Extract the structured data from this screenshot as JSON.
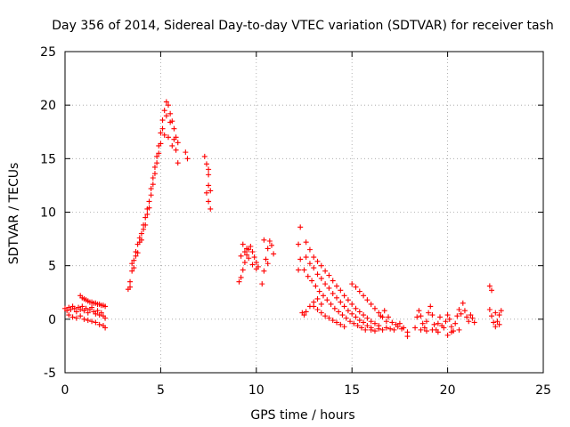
{
  "chart_data": {
    "type": "scatter",
    "title": "Day 356 of 2014, Sidereal Day-to-day VTEC variation (SDTVAR) for receiver tash",
    "xlabel": "GPS time / hours",
    "ylabel": "SDTVAR / TECUs",
    "xlim": [
      0,
      25
    ],
    "ylim": [
      -5,
      25
    ],
    "xticks": [
      0,
      5,
      10,
      15,
      20,
      25
    ],
    "yticks": [
      -5,
      0,
      5,
      10,
      15,
      20,
      25
    ],
    "grid": true,
    "marker": "+",
    "color": "#ff0000",
    "series": [
      {
        "name": "SDTVAR",
        "points": [
          [
            0.0,
            1.0
          ],
          [
            0.1,
            0.8
          ],
          [
            0.2,
            1.1
          ],
          [
            0.3,
            0.9
          ],
          [
            0.4,
            1.2
          ],
          [
            0.5,
            1.0
          ],
          [
            0.6,
            0.7
          ],
          [
            0.7,
            1.1
          ],
          [
            0.8,
            0.9
          ],
          [
            0.9,
            1.2
          ],
          [
            1.0,
            0.8
          ],
          [
            1.1,
            1.0
          ],
          [
            1.2,
            0.6
          ],
          [
            1.3,
            0.9
          ],
          [
            1.4,
            1.1
          ],
          [
            1.5,
            0.7
          ],
          [
            1.6,
            0.5
          ],
          [
            1.7,
            0.8
          ],
          [
            1.8,
            0.4
          ],
          [
            1.9,
            0.6
          ],
          [
            2.0,
            0.3
          ],
          [
            2.1,
            0.1
          ],
          [
            0.2,
            0.4
          ],
          [
            0.4,
            0.2
          ],
          [
            0.6,
            0.1
          ],
          [
            0.8,
            0.3
          ],
          [
            1.0,
            0.0
          ],
          [
            1.2,
            -0.1
          ],
          [
            1.4,
            -0.2
          ],
          [
            1.6,
            -0.3
          ],
          [
            1.8,
            -0.5
          ],
          [
            2.0,
            -0.6
          ],
          [
            2.1,
            -0.8
          ],
          [
            0.8,
            2.2
          ],
          [
            0.9,
            2.0
          ],
          [
            1.0,
            1.9
          ],
          [
            1.1,
            1.8
          ],
          [
            1.2,
            1.7
          ],
          [
            1.3,
            1.6
          ],
          [
            1.4,
            1.6
          ],
          [
            1.5,
            1.5
          ],
          [
            1.6,
            1.5
          ],
          [
            1.7,
            1.4
          ],
          [
            1.8,
            1.4
          ],
          [
            1.9,
            1.3
          ],
          [
            2.0,
            1.3
          ],
          [
            2.1,
            1.2
          ],
          [
            3.3,
            2.8
          ],
          [
            3.4,
            3.5
          ],
          [
            3.5,
            4.5
          ],
          [
            3.6,
            5.5
          ],
          [
            3.7,
            6.3
          ],
          [
            3.8,
            7.0
          ],
          [
            3.9,
            7.6
          ],
          [
            4.0,
            8.0
          ],
          [
            4.1,
            8.8
          ],
          [
            4.2,
            9.5
          ],
          [
            4.3,
            10.3
          ],
          [
            4.4,
            11.0
          ],
          [
            4.5,
            12.2
          ],
          [
            4.6,
            13.2
          ],
          [
            4.7,
            14.2
          ],
          [
            4.8,
            15.2
          ],
          [
            4.9,
            16.2
          ],
          [
            5.0,
            17.4
          ],
          [
            5.1,
            18.6
          ],
          [
            5.2,
            19.5
          ],
          [
            5.3,
            20.3
          ],
          [
            5.4,
            20.0
          ],
          [
            5.5,
            19.2
          ],
          [
            5.6,
            18.5
          ],
          [
            5.7,
            17.8
          ],
          [
            5.8,
            17.0
          ],
          [
            5.9,
            16.5
          ],
          [
            3.4,
            3.0
          ],
          [
            3.6,
            4.8
          ],
          [
            3.8,
            6.2
          ],
          [
            4.0,
            7.4
          ],
          [
            4.2,
            8.8
          ],
          [
            4.4,
            10.4
          ],
          [
            4.6,
            12.6
          ],
          [
            4.8,
            14.6
          ],
          [
            5.0,
            16.4
          ],
          [
            5.2,
            17.2
          ],
          [
            5.4,
            17.0
          ],
          [
            5.6,
            16.2
          ],
          [
            5.8,
            15.8
          ],
          [
            3.5,
            5.2
          ],
          [
            3.7,
            5.9
          ],
          [
            3.9,
            7.2
          ],
          [
            4.1,
            8.4
          ],
          [
            4.3,
            9.8
          ],
          [
            4.5,
            11.6
          ],
          [
            4.7,
            13.6
          ],
          [
            4.9,
            15.5
          ],
          [
            5.1,
            17.8
          ],
          [
            5.3,
            19.0
          ],
          [
            5.5,
            18.4
          ],
          [
            5.7,
            16.8
          ],
          [
            5.9,
            14.6
          ],
          [
            6.3,
            15.6
          ],
          [
            6.4,
            15.0
          ],
          [
            7.3,
            15.2
          ],
          [
            7.4,
            14.5
          ],
          [
            7.5,
            13.5
          ],
          [
            7.5,
            12.5
          ],
          [
            7.4,
            11.8
          ],
          [
            7.5,
            11.0
          ],
          [
            7.6,
            10.3
          ],
          [
            7.6,
            12.0
          ],
          [
            7.5,
            14.0
          ],
          [
            9.1,
            3.5
          ],
          [
            9.2,
            3.9
          ],
          [
            9.3,
            4.6
          ],
          [
            9.4,
            5.3
          ],
          [
            9.5,
            6.0
          ],
          [
            9.6,
            6.5
          ],
          [
            9.7,
            6.8
          ],
          [
            9.8,
            6.3
          ],
          [
            9.9,
            5.8
          ],
          [
            10.0,
            5.3
          ],
          [
            10.1,
            4.9
          ],
          [
            9.2,
            5.9
          ],
          [
            9.4,
            6.3
          ],
          [
            9.6,
            5.7
          ],
          [
            9.8,
            5.1
          ],
          [
            10.0,
            4.7
          ],
          [
            9.3,
            7.0
          ],
          [
            9.5,
            6.6
          ],
          [
            10.3,
            3.3
          ],
          [
            10.4,
            4.5
          ],
          [
            10.5,
            5.6
          ],
          [
            10.6,
            6.6
          ],
          [
            10.7,
            7.3
          ],
          [
            10.8,
            6.9
          ],
          [
            10.9,
            6.1
          ],
          [
            10.4,
            7.4
          ],
          [
            10.6,
            5.2
          ],
          [
            12.3,
            8.6
          ],
          [
            12.2,
            7.0
          ],
          [
            12.3,
            5.6
          ],
          [
            12.2,
            4.6
          ],
          [
            12.6,
            7.2
          ],
          [
            12.8,
            6.5
          ],
          [
            13.0,
            5.8
          ],
          [
            13.2,
            5.4
          ],
          [
            13.4,
            5.0
          ],
          [
            13.6,
            4.5
          ],
          [
            13.8,
            4.1
          ],
          [
            14.0,
            3.6
          ],
          [
            14.2,
            3.1
          ],
          [
            14.4,
            2.7
          ],
          [
            14.6,
            2.2
          ],
          [
            14.8,
            1.8
          ],
          [
            15.0,
            1.4
          ],
          [
            15.2,
            1.0
          ],
          [
            15.4,
            0.7
          ],
          [
            15.6,
            0.4
          ],
          [
            15.8,
            0.1
          ],
          [
            16.0,
            -0.2
          ],
          [
            16.2,
            -0.4
          ],
          [
            16.4,
            -0.6
          ],
          [
            12.6,
            5.8
          ],
          [
            12.8,
            5.2
          ],
          [
            13.0,
            4.8
          ],
          [
            13.2,
            4.2
          ],
          [
            13.4,
            3.8
          ],
          [
            13.6,
            3.3
          ],
          [
            13.8,
            2.9
          ],
          [
            14.0,
            2.4
          ],
          [
            14.2,
            2.0
          ],
          [
            14.4,
            1.6
          ],
          [
            14.6,
            1.2
          ],
          [
            14.8,
            0.8
          ],
          [
            15.0,
            0.5
          ],
          [
            15.2,
            0.2
          ],
          [
            15.4,
            -0.1
          ],
          [
            15.6,
            -0.3
          ],
          [
            15.8,
            -0.6
          ],
          [
            16.0,
            -0.8
          ],
          [
            12.5,
            4.6
          ],
          [
            12.7,
            4.0
          ],
          [
            12.9,
            3.6
          ],
          [
            13.1,
            3.1
          ],
          [
            13.3,
            2.6
          ],
          [
            13.5,
            2.2
          ],
          [
            13.7,
            1.8
          ],
          [
            13.9,
            1.4
          ],
          [
            14.1,
            1.0
          ],
          [
            14.3,
            0.7
          ],
          [
            14.5,
            0.4
          ],
          [
            14.7,
            0.1
          ],
          [
            14.9,
            -0.2
          ],
          [
            15.1,
            -0.4
          ],
          [
            15.3,
            -0.6
          ],
          [
            15.5,
            -0.8
          ],
          [
            15.7,
            -1.0
          ],
          [
            13.0,
            1.2
          ],
          [
            13.2,
            0.9
          ],
          [
            13.4,
            0.6
          ],
          [
            13.6,
            0.3
          ],
          [
            13.8,
            0.1
          ],
          [
            14.0,
            -0.1
          ],
          [
            14.2,
            -0.3
          ],
          [
            14.4,
            -0.5
          ],
          [
            14.6,
            -0.7
          ],
          [
            12.4,
            0.6
          ],
          [
            12.5,
            0.4
          ],
          [
            12.6,
            0.7
          ],
          [
            12.8,
            1.2
          ],
          [
            13.0,
            1.6
          ],
          [
            13.2,
            1.9
          ],
          [
            13.4,
            1.4
          ],
          [
            15.0,
            3.3
          ],
          [
            15.2,
            3.0
          ],
          [
            15.4,
            2.6
          ],
          [
            15.6,
            2.2
          ],
          [
            15.8,
            1.8
          ],
          [
            16.0,
            1.4
          ],
          [
            16.2,
            1.0
          ],
          [
            16.4,
            0.6
          ],
          [
            16.6,
            0.2
          ],
          [
            16.8,
            -0.2
          ],
          [
            16.0,
            -1.0
          ],
          [
            16.2,
            -1.1
          ],
          [
            16.4,
            -0.9
          ],
          [
            16.6,
            -1.0
          ],
          [
            16.8,
            -0.8
          ],
          [
            17.0,
            -0.9
          ],
          [
            17.2,
            -1.0
          ],
          [
            17.4,
            -0.7
          ],
          [
            17.6,
            -0.9
          ],
          [
            16.5,
            0.3
          ],
          [
            16.7,
            0.8
          ],
          [
            16.9,
            0.2
          ],
          [
            17.1,
            -0.3
          ],
          [
            17.3,
            -0.5
          ],
          [
            17.5,
            -0.4
          ],
          [
            17.7,
            -0.8
          ],
          [
            17.9,
            -1.2
          ],
          [
            17.9,
            -1.6
          ],
          [
            18.3,
            -0.8
          ],
          [
            18.4,
            0.2
          ],
          [
            18.5,
            0.8
          ],
          [
            18.6,
            0.3
          ],
          [
            18.7,
            -0.4
          ],
          [
            18.8,
            -0.8
          ],
          [
            18.9,
            -0.2
          ],
          [
            19.0,
            0.6
          ],
          [
            19.1,
            1.2
          ],
          [
            19.2,
            0.4
          ],
          [
            19.3,
            -0.5
          ],
          [
            19.4,
            -1.0
          ],
          [
            19.5,
            -0.4
          ],
          [
            19.6,
            0.2
          ],
          [
            19.7,
            -0.6
          ],
          [
            18.6,
            -1.0
          ],
          [
            18.9,
            -1.1
          ],
          [
            19.2,
            -1.0
          ],
          [
            19.5,
            -1.2
          ],
          [
            19.8,
            -0.8
          ],
          [
            19.9,
            -0.2
          ],
          [
            20.0,
            0.4
          ],
          [
            20.1,
            0.0
          ],
          [
            20.2,
            -0.7
          ],
          [
            20.3,
            -1.1
          ],
          [
            20.4,
            -0.4
          ],
          [
            20.5,
            0.3
          ],
          [
            20.6,
            0.9
          ],
          [
            20.7,
            0.5
          ],
          [
            20.8,
            1.5
          ],
          [
            20.9,
            0.8
          ],
          [
            21.0,
            0.2
          ],
          [
            21.1,
            -0.2
          ],
          [
            21.2,
            0.4
          ],
          [
            21.3,
            0.1
          ],
          [
            21.4,
            -0.3
          ],
          [
            20.0,
            -1.5
          ],
          [
            20.2,
            -1.2
          ],
          [
            20.6,
            -1.0
          ],
          [
            22.2,
            3.1
          ],
          [
            22.3,
            2.7
          ],
          [
            22.2,
            0.9
          ],
          [
            22.3,
            0.3
          ],
          [
            22.4,
            -0.3
          ],
          [
            22.5,
            -0.7
          ],
          [
            22.6,
            -0.2
          ],
          [
            22.7,
            0.4
          ],
          [
            22.8,
            0.8
          ],
          [
            22.5,
            0.6
          ],
          [
            22.7,
            -0.5
          ]
        ]
      }
    ]
  }
}
